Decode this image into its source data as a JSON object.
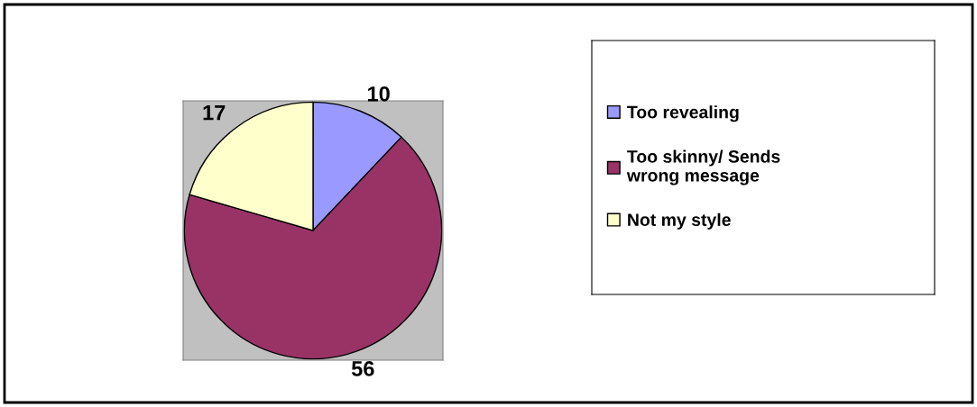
{
  "chart_data": {
    "type": "pie",
    "categories": [
      "Too revealing",
      "Too skinny/ Sends wrong message",
      "Not my style"
    ],
    "values": [
      10,
      56,
      17
    ],
    "colors": [
      "#9999ff",
      "#993366",
      "#ffffcc"
    ],
    "data_labels": true,
    "legend": "right"
  }
}
